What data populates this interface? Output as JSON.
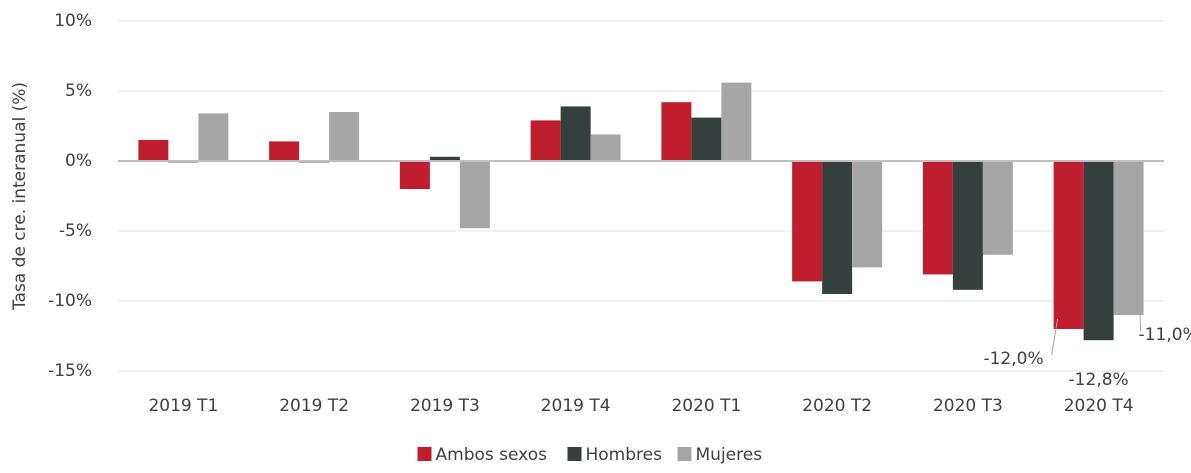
{
  "chart_data": {
    "type": "bar",
    "y_label": "Tasa de cre. interanual (%)",
    "categories": [
      "2019 T1",
      "2019 T2",
      "2019 T3",
      "2019 T4",
      "2020 T1",
      "2020 T2",
      "2020 T3",
      "2020 T4"
    ],
    "series": [
      {
        "name": "Ambos sexos",
        "color": "#be1e2d",
        "values": [
          1.5,
          1.4,
          -2.0,
          2.9,
          4.2,
          -8.6,
          -8.1,
          -12.0
        ],
        "value_labels": [
          null,
          null,
          null,
          null,
          null,
          null,
          null,
          "-12,0%"
        ]
      },
      {
        "name": "Hombres",
        "color": "#353f3e",
        "values": [
          -0.1,
          -0.1,
          0.3,
          3.9,
          3.1,
          -9.5,
          -9.2,
          -12.8
        ],
        "value_labels": [
          null,
          null,
          null,
          null,
          null,
          null,
          null,
          "-12,8%"
        ]
      },
      {
        "name": "Mujeres",
        "color": "#a6a6a6",
        "values": [
          3.4,
          3.5,
          -4.8,
          1.9,
          5.6,
          -7.6,
          -6.7,
          -11.0
        ],
        "value_labels": [
          null,
          null,
          null,
          null,
          null,
          null,
          null,
          "-11,0%"
        ]
      }
    ],
    "ylim": [
      -15,
      10
    ],
    "yticks": [
      {
        "value": -15,
        "label": "-15%"
      },
      {
        "value": -10,
        "label": "-10%"
      },
      {
        "value": -5,
        "label": "-5%"
      },
      {
        "value": 0,
        "label": "0%"
      },
      {
        "value": 5,
        "label": "5%"
      },
      {
        "value": 10,
        "label": "10%"
      }
    ],
    "grid": true,
    "legend": "bottom"
  }
}
